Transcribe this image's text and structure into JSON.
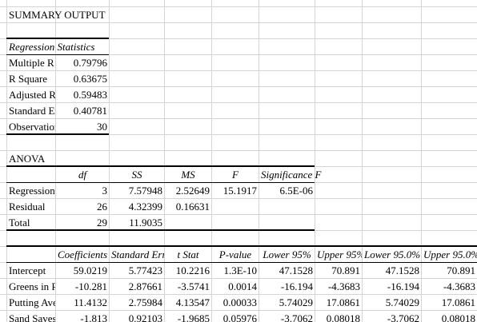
{
  "title": "SUMMARY OUTPUT",
  "regression_stats": {
    "header": "Regression Statistics",
    "rows": [
      {
        "label": "Multiple R",
        "value": "0.79796"
      },
      {
        "label": "R Square",
        "value": "0.63675"
      },
      {
        "label": "Adjusted R Square",
        "value": "0.59483"
      },
      {
        "label": "Standard Error",
        "value": "0.40781"
      },
      {
        "label": "Observations",
        "value": "30"
      }
    ]
  },
  "anova": {
    "title": "ANOVA",
    "headers": [
      "",
      "df",
      "SS",
      "MS",
      "F",
      "Significance F"
    ],
    "rows": [
      [
        "Regression",
        "3",
        "7.57948",
        "2.52649",
        "15.1917",
        "6.5E-06"
      ],
      [
        "Residual",
        "26",
        "4.32399",
        "0.16631",
        "",
        ""
      ],
      [
        "Total",
        "29",
        "11.9035",
        "",
        "",
        ""
      ]
    ]
  },
  "coefficients": {
    "headers": [
      "",
      "Coefficients",
      "Standard Error",
      "t Stat",
      "P-value",
      "Lower 95%",
      "Upper 95%",
      "Lower 95.0%",
      "Upper 95.0%"
    ],
    "rows": [
      [
        "Intercept",
        "59.0219",
        "5.77423",
        "10.2216",
        "1.3E-10",
        "47.1528",
        "70.891",
        "47.1528",
        "70.891"
      ],
      [
        "Greens in Regulation",
        "-10.281",
        "2.87661",
        "-3.5741",
        "0.0014",
        "-16.194",
        "-4.3683",
        "-16.194",
        "-4.3683"
      ],
      [
        "Putting Average",
        "11.4132",
        "2.75984",
        "4.13547",
        "0.00033",
        "5.74029",
        "17.0861",
        "5.74029",
        "17.0861"
      ],
      [
        "Sand Saves",
        "-1.813",
        "0.92103",
        "-1.9685",
        "0.05976",
        "-3.7062",
        "0.08018",
        "-3.7062",
        "0.08018"
      ]
    ]
  }
}
